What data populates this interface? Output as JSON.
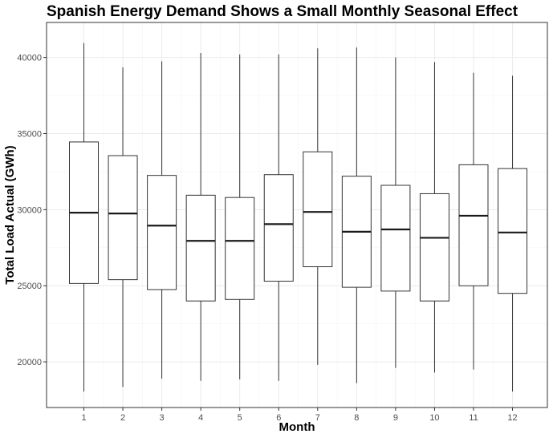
{
  "chart_data": {
    "type": "boxplot",
    "title": "Spanish Energy Demand Shows a Small Monthly Seasonal Effect",
    "xlabel": "Month",
    "ylabel": "Total Load Actual (GWh)",
    "categories": [
      "1",
      "2",
      "3",
      "4",
      "5",
      "6",
      "7",
      "8",
      "9",
      "10",
      "11",
      "12"
    ],
    "y_ticks": [
      20000,
      25000,
      30000,
      35000,
      40000
    ],
    "y_tick_labels": [
      "20000",
      "25000",
      "30000",
      "35000",
      "40000"
    ],
    "ylim": [
      17000,
      42300
    ],
    "grid": true,
    "legend": "none",
    "series": [
      {
        "category": "1",
        "min": 18050,
        "q1": 25150,
        "median": 29800,
        "q3": 34450,
        "max": 40950
      },
      {
        "category": "2",
        "min": 18350,
        "q1": 25400,
        "median": 29750,
        "q3": 33550,
        "max": 39350
      },
      {
        "category": "3",
        "min": 18900,
        "q1": 24750,
        "median": 28950,
        "q3": 32250,
        "max": 39750
      },
      {
        "category": "4",
        "min": 18750,
        "q1": 24000,
        "median": 27950,
        "q3": 30950,
        "max": 40300
      },
      {
        "category": "5",
        "min": 18850,
        "q1": 24100,
        "median": 27950,
        "q3": 30800,
        "max": 40200
      },
      {
        "category": "6",
        "min": 18750,
        "q1": 25300,
        "median": 29050,
        "q3": 32300,
        "max": 40200
      },
      {
        "category": "7",
        "min": 19800,
        "q1": 26250,
        "median": 29850,
        "q3": 33800,
        "max": 40600
      },
      {
        "category": "8",
        "min": 18600,
        "q1": 24900,
        "median": 28550,
        "q3": 32200,
        "max": 40650
      },
      {
        "category": "9",
        "min": 19600,
        "q1": 24650,
        "median": 28700,
        "q3": 31600,
        "max": 40000
      },
      {
        "category": "10",
        "min": 19300,
        "q1": 24000,
        "median": 28150,
        "q3": 31050,
        "max": 39700
      },
      {
        "category": "11",
        "min": 19500,
        "q1": 25000,
        "median": 29600,
        "q3": 32950,
        "max": 39000
      },
      {
        "category": "12",
        "min": 18050,
        "q1": 24500,
        "median": 28500,
        "q3": 32700,
        "max": 38800
      }
    ]
  }
}
